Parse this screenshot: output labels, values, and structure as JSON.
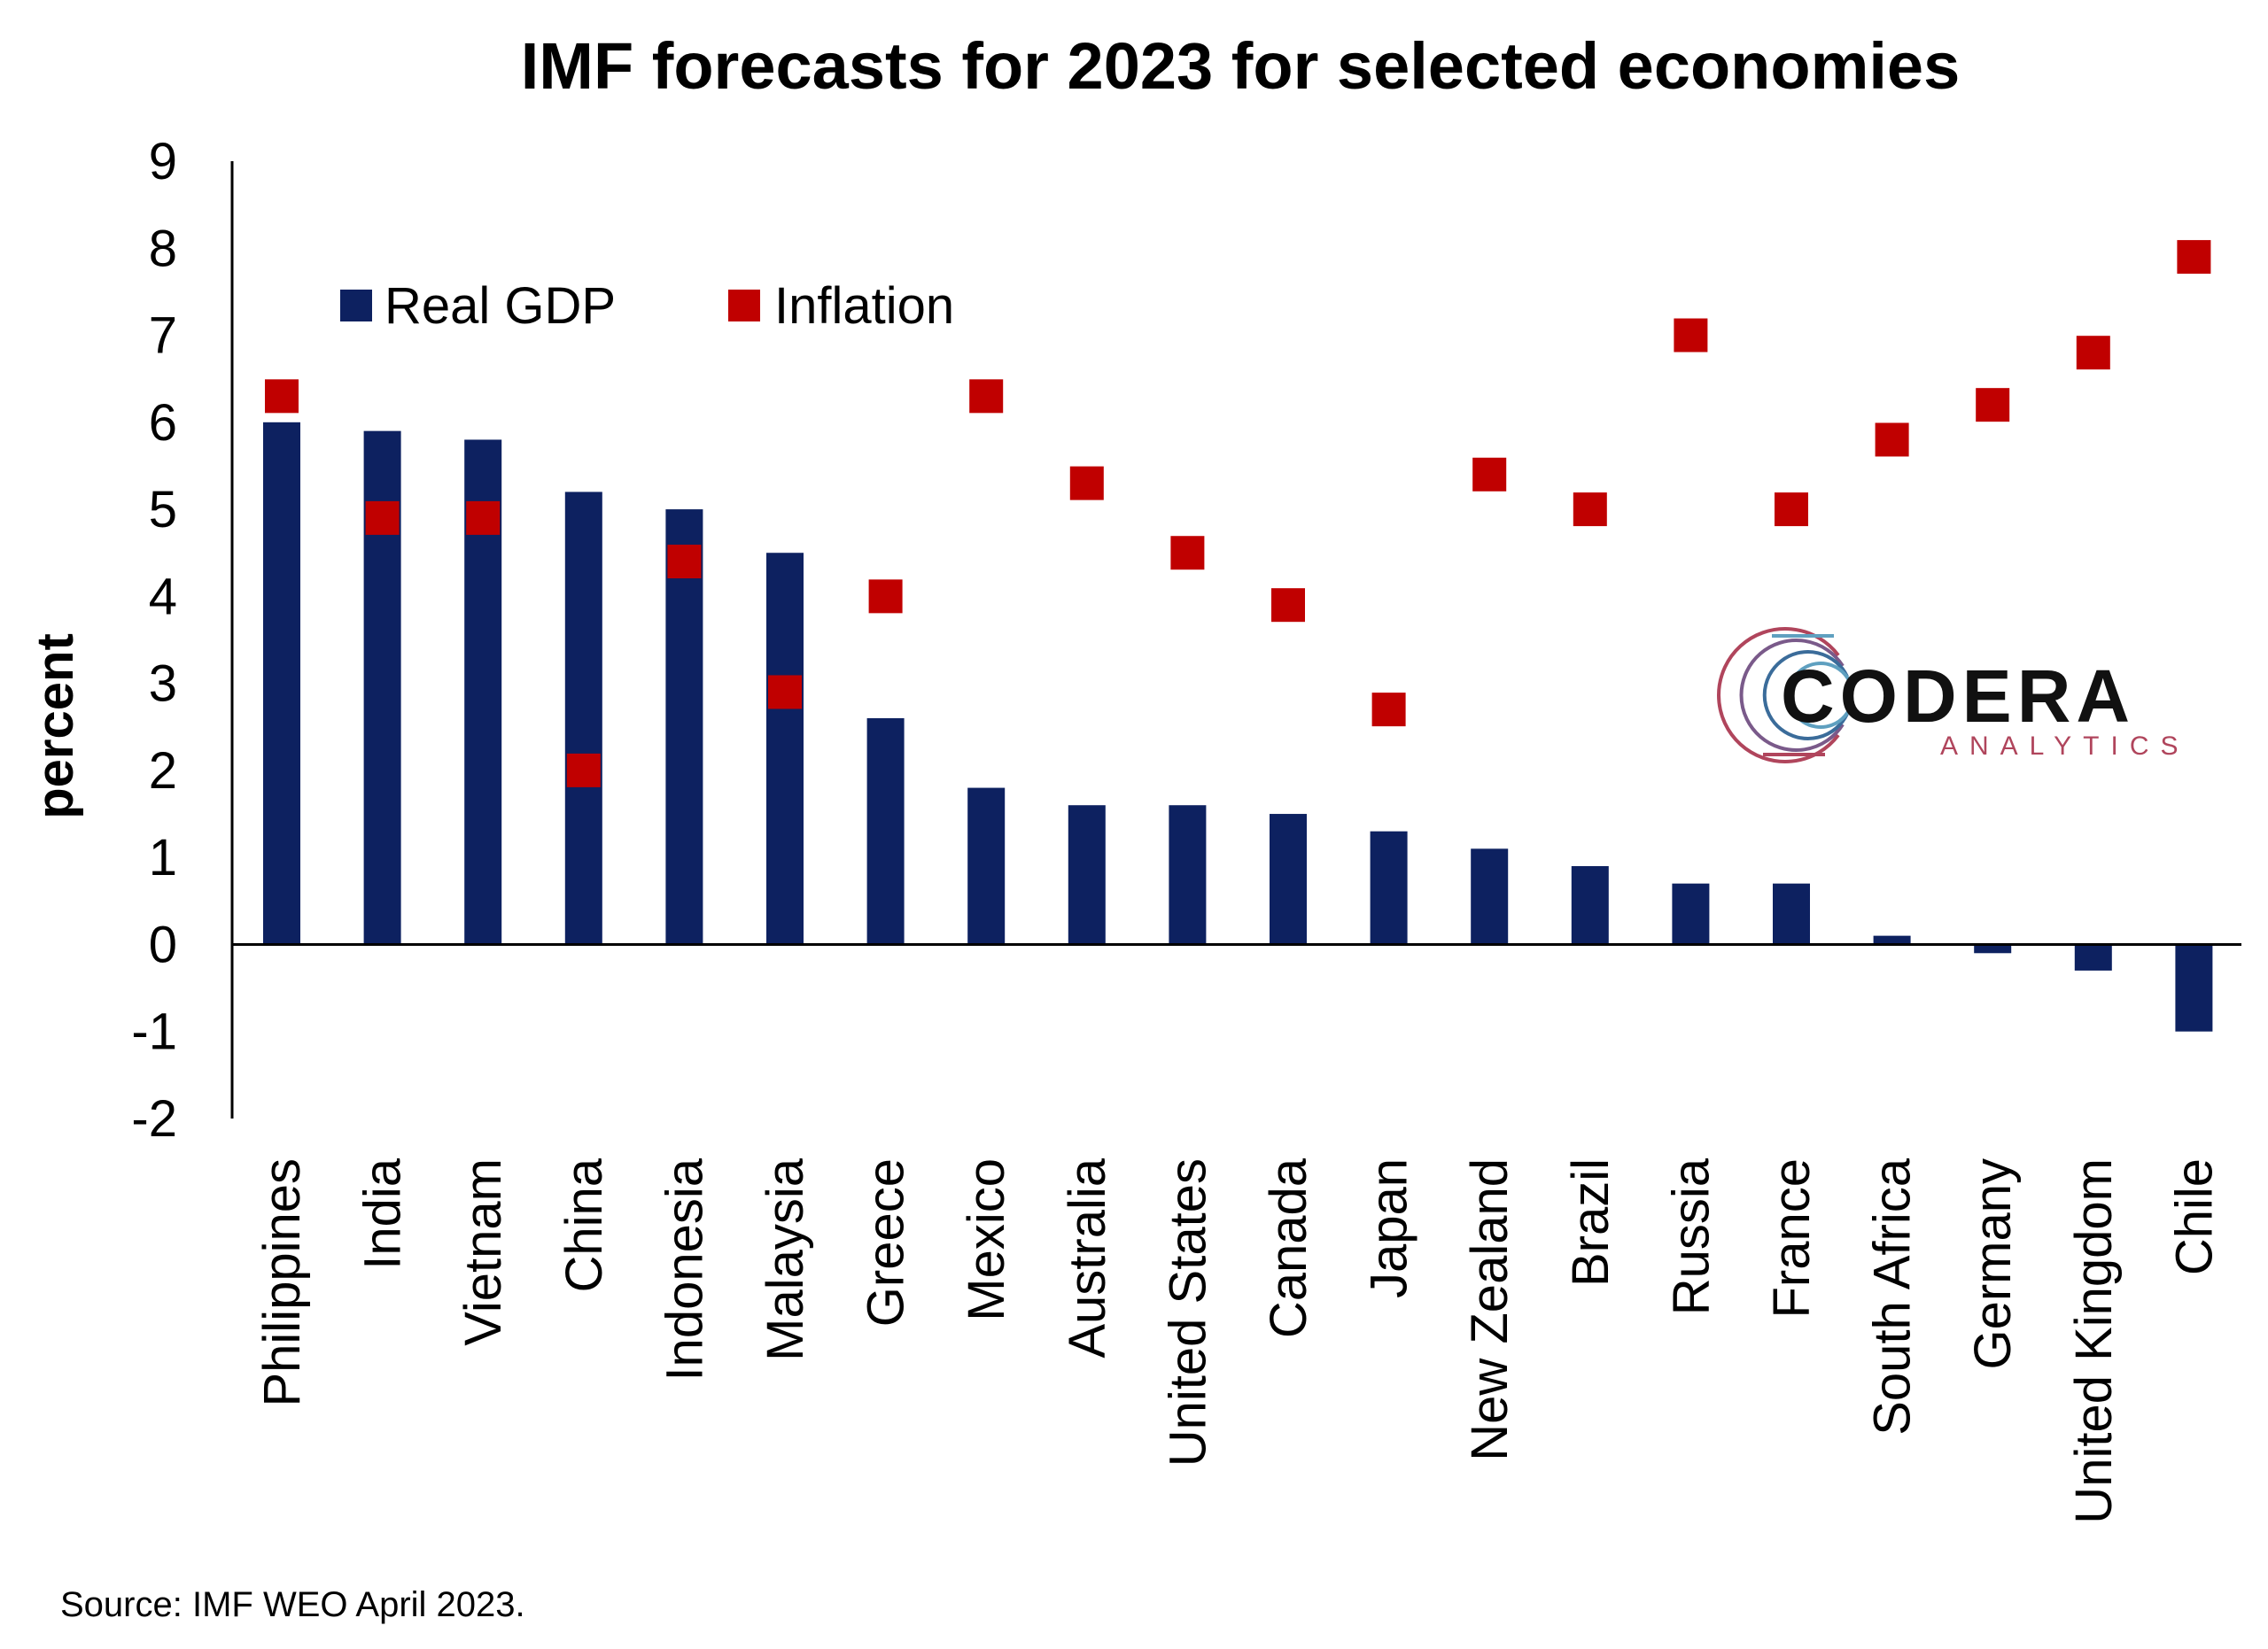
{
  "chart_data": {
    "type": "bar",
    "title": "IMF forecasts for 2023 for selected economies",
    "ylabel": "percent",
    "xlabel": "",
    "ylim": [
      -2,
      9
    ],
    "yticks": [
      "9",
      "8",
      "7",
      "6",
      "5",
      "4",
      "3",
      "2",
      "1",
      "0",
      "-1",
      "-2"
    ],
    "grid": false,
    "legend_position": "top-left",
    "categories": [
      "Philippines",
      "India",
      "Vietnam",
      "China",
      "Indonesia",
      "Malaysia",
      "Greece",
      "Mexico",
      "Australia",
      "United States",
      "Canada",
      "Japan",
      "New Zealand",
      "Brazil",
      "Russia",
      "France",
      "South Africa",
      "Germany",
      "United Kingdom",
      "Chile"
    ],
    "series": [
      {
        "name": "Real GDP",
        "type": "bar",
        "color": "#0d2160",
        "values": [
          6.0,
          5.9,
          5.8,
          5.2,
          5.0,
          4.5,
          2.6,
          1.8,
          1.6,
          1.6,
          1.5,
          1.3,
          1.1,
          0.9,
          0.7,
          0.7,
          0.1,
          -0.1,
          -0.3,
          -1.0
        ]
      },
      {
        "name": "Inflation",
        "type": "marker",
        "color": "#c00000",
        "values": [
          6.3,
          4.9,
          4.9,
          2.0,
          4.4,
          2.9,
          4.0,
          6.3,
          5.3,
          4.5,
          3.9,
          2.7,
          5.4,
          5.0,
          7.0,
          5.0,
          5.8,
          6.2,
          6.8,
          7.9
        ]
      }
    ],
    "source": "Source: IMF WEO April 2023."
  },
  "logo": {
    "main": "CODERA",
    "sub": "ANALYTICS",
    "sub_color": "#b0455c"
  },
  "colors": {
    "gdp_bar": "#0d2160",
    "inflation_marker": "#c00000",
    "axis": "#000000"
  }
}
